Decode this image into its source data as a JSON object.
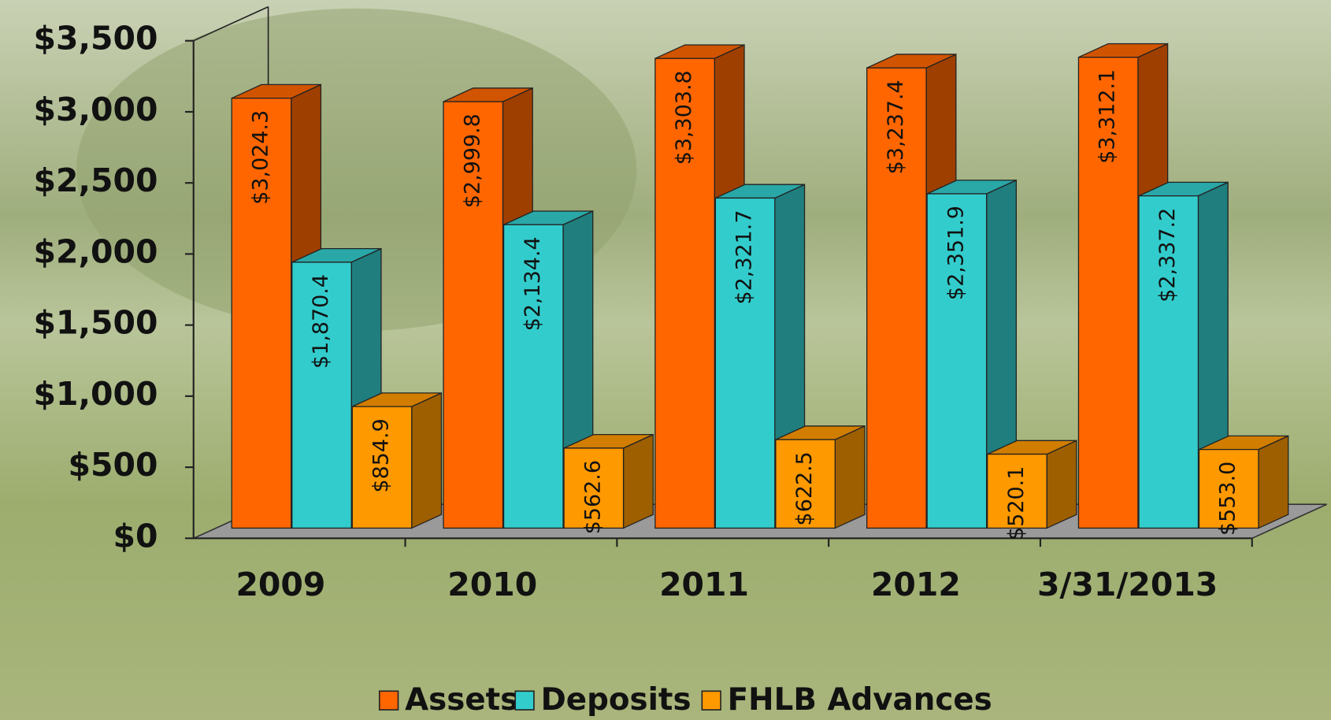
{
  "chart_data": {
    "type": "bar3d",
    "categories": [
      "2009",
      "2010",
      "2011",
      "2012",
      "3/31/2013"
    ],
    "series": [
      {
        "name": "Assets",
        "color": "#ff6600",
        "values": [
          3024.3,
          2999.8,
          3303.8,
          3237.4,
          3312.1
        ],
        "value_labels": [
          "$3,024.3",
          "$2,999.8",
          "$3,303.8",
          "$3,237.4",
          "$3,312.1"
        ]
      },
      {
        "name": "Deposits",
        "color": "#33cccc",
        "values": [
          1870.4,
          2134.4,
          2321.7,
          2351.9,
          2337.2
        ],
        "value_labels": [
          "$1,870.4",
          "$2,134.4",
          "$2,321.7",
          "$2,351.9",
          "$2,337.2"
        ]
      },
      {
        "name": "FHLB Advances",
        "color": "#ff9900",
        "values": [
          854.9,
          562.6,
          622.5,
          520.1,
          553.0
        ],
        "value_labels": [
          "$854.9",
          "$562.6",
          "$622.5",
          "$520.1",
          "$553.0"
        ]
      }
    ],
    "ylim": [
      0,
      3500
    ],
    "yticks": [
      {
        "value": 0,
        "label": "$0"
      },
      {
        "value": 500,
        "label": "$500"
      },
      {
        "value": 1000,
        "label": "$1,000"
      },
      {
        "value": 1500,
        "label": "$1,500"
      },
      {
        "value": 2000,
        "label": "$2,000"
      },
      {
        "value": 2500,
        "label": "$2,500"
      },
      {
        "value": 3000,
        "label": "$3,000"
      },
      {
        "value": 3500,
        "label": "$3,500"
      }
    ],
    "legend": "bottom"
  }
}
